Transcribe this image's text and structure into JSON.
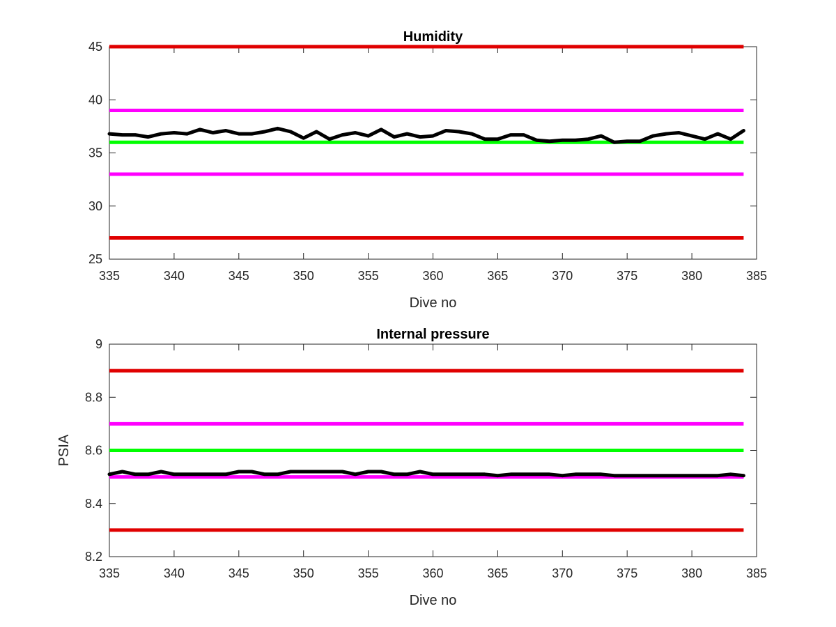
{
  "chart_data": [
    {
      "type": "line",
      "title": "Humidity",
      "xlabel": "Dive no",
      "ylabel": "",
      "xlim": [
        335,
        385
      ],
      "ylim": [
        25,
        45
      ],
      "x_ticks": [
        "335",
        "340",
        "345",
        "350",
        "355",
        "360",
        "365",
        "370",
        "375",
        "380",
        "385"
      ],
      "y_ticks": [
        "25",
        "30",
        "35",
        "40",
        "45"
      ],
      "grid": false,
      "threshold_lines": [
        {
          "value": 45,
          "color": "#e00000"
        },
        {
          "value": 39,
          "color": "#ff00ff"
        },
        {
          "value": 36,
          "color": "#00ff00"
        },
        {
          "value": 33,
          "color": "#ff00ff"
        },
        {
          "value": 27,
          "color": "#e00000"
        }
      ],
      "series": [
        {
          "color": "#000000",
          "x": [
            335,
            336,
            337,
            338,
            339,
            340,
            341,
            342,
            343,
            344,
            345,
            346,
            347,
            348,
            349,
            350,
            351,
            352,
            353,
            354,
            355,
            356,
            357,
            358,
            359,
            360,
            361,
            362,
            363,
            364,
            365,
            366,
            367,
            368,
            369,
            370,
            371,
            372,
            373,
            374,
            375,
            376,
            377,
            378,
            379,
            380,
            381,
            382,
            383,
            384
          ],
          "y": [
            36.8,
            36.7,
            36.7,
            36.5,
            36.8,
            36.9,
            36.8,
            37.2,
            36.9,
            37.1,
            36.8,
            36.8,
            37.0,
            37.3,
            37.0,
            36.4,
            37.0,
            36.3,
            36.7,
            36.9,
            36.6,
            37.2,
            36.5,
            36.8,
            36.5,
            36.6,
            37.1,
            37.0,
            36.8,
            36.3,
            36.3,
            36.7,
            36.7,
            36.2,
            36.1,
            36.2,
            36.2,
            36.3,
            36.6,
            36.0,
            36.1,
            36.1,
            36.6,
            36.8,
            36.9,
            36.6,
            36.3,
            36.8,
            36.3,
            37.1
          ]
        }
      ]
    },
    {
      "type": "line",
      "title": "Internal pressure",
      "xlabel": "Dive no",
      "ylabel": "PSIA",
      "xlim": [
        335,
        385
      ],
      "ylim": [
        8.2,
        9
      ],
      "x_ticks": [
        "335",
        "340",
        "345",
        "350",
        "355",
        "360",
        "365",
        "370",
        "375",
        "380",
        "385"
      ],
      "y_ticks": [
        "8.2",
        "8.4",
        "8.6",
        "8.8",
        "9"
      ],
      "grid": false,
      "threshold_lines": [
        {
          "value": 8.9,
          "color": "#e00000"
        },
        {
          "value": 8.7,
          "color": "#ff00ff"
        },
        {
          "value": 8.6,
          "color": "#00ff00"
        },
        {
          "value": 8.5,
          "color": "#ff00ff"
        },
        {
          "value": 8.3,
          "color": "#e00000"
        }
      ],
      "series": [
        {
          "color": "#000000",
          "x": [
            335,
            336,
            337,
            338,
            339,
            340,
            341,
            342,
            343,
            344,
            345,
            346,
            347,
            348,
            349,
            350,
            351,
            352,
            353,
            354,
            355,
            356,
            357,
            358,
            359,
            360,
            361,
            362,
            363,
            364,
            365,
            366,
            367,
            368,
            369,
            370,
            371,
            372,
            373,
            374,
            375,
            376,
            377,
            378,
            379,
            380,
            381,
            382,
            383,
            384
          ],
          "y": [
            8.51,
            8.52,
            8.51,
            8.51,
            8.52,
            8.51,
            8.51,
            8.51,
            8.51,
            8.51,
            8.52,
            8.52,
            8.51,
            8.51,
            8.52,
            8.52,
            8.52,
            8.52,
            8.52,
            8.51,
            8.52,
            8.52,
            8.51,
            8.51,
            8.52,
            8.51,
            8.51,
            8.51,
            8.51,
            8.51,
            8.505,
            8.51,
            8.51,
            8.51,
            8.51,
            8.505,
            8.51,
            8.51,
            8.51,
            8.505,
            8.505,
            8.505,
            8.505,
            8.505,
            8.505,
            8.505,
            8.505,
            8.505,
            8.51,
            8.505
          ]
        }
      ]
    }
  ]
}
